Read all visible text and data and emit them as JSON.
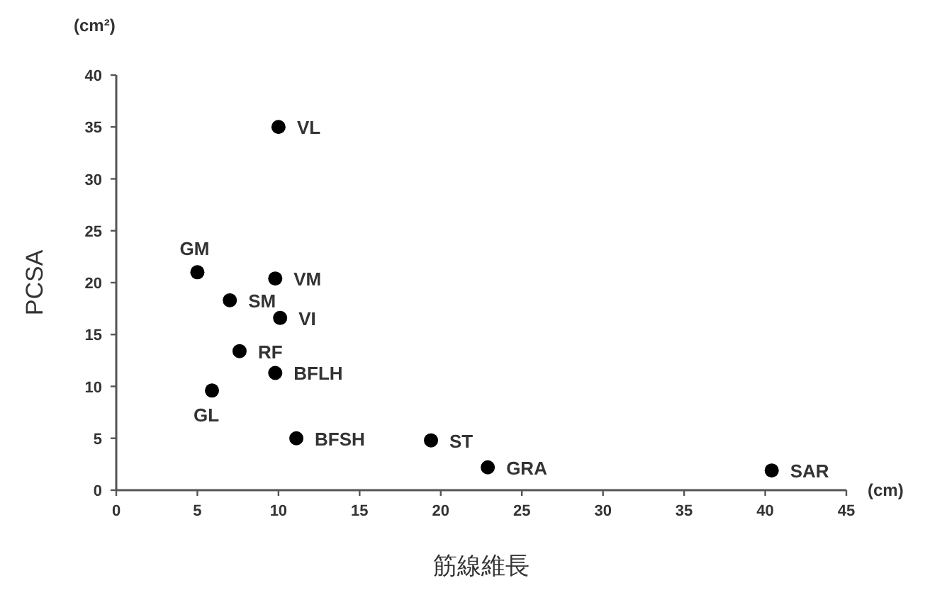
{
  "chart_data": {
    "type": "scatter",
    "xlabel": "筋線維長",
    "ylabel": "PCSA",
    "x": [
      10,
      5.0,
      9.8,
      7.0,
      10.1,
      7.6,
      9.8,
      5.9,
      11.1,
      19.4,
      22.9,
      40.4
    ],
    "values": [
      35,
      21.0,
      20.4,
      18.3,
      16.6,
      13.4,
      11.3,
      9.6,
      5.0,
      4.8,
      2.2,
      1.9
    ],
    "color": "#000000",
    "marker": "circle",
    "grid": false,
    "xlim": [
      0,
      45
    ],
    "xticks": [
      0,
      5,
      10,
      15,
      20,
      25,
      30,
      35,
      40,
      45
    ],
    "ylim": [
      0,
      40
    ],
    "yticks": [
      0,
      5,
      10,
      15,
      20,
      25,
      30,
      35,
      40
    ],
    "annotations": [
      "(cm²)",
      "(cm)",
      {
        "text": "VL",
        "x": 10,
        "y": 35
      },
      {
        "text": "GM",
        "x": 5.0,
        "y": 21.0
      },
      {
        "text": "VM",
        "x": 9.8,
        "y": 20.4
      },
      {
        "text": "SM",
        "x": 7.0,
        "y": 18.3
      },
      {
        "text": "VI",
        "x": 10.1,
        "y": 16.6
      },
      {
        "text": "RF",
        "x": 7.6,
        "y": 13.4
      },
      {
        "text": "BFLH",
        "x": 9.8,
        "y": 11.3
      },
      {
        "text": "GL",
        "x": 5.9,
        "y": 9.6
      },
      {
        "text": "BFSH",
        "x": 11.1,
        "y": 5.0
      },
      {
        "text": "ST",
        "x": 19.4,
        "y": 4.8
      },
      {
        "text": "GRA",
        "x": 22.9,
        "y": 2.2
      },
      {
        "text": "SAR",
        "x": 40.4,
        "y": 1.9
      }
    ]
  }
}
